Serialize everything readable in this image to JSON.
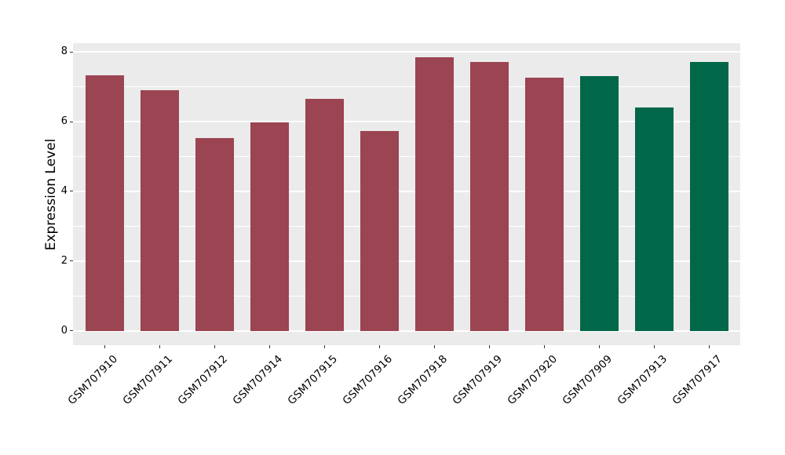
{
  "chart_data": {
    "type": "bar",
    "title": "",
    "xlabel": "",
    "ylabel": "Expression Level",
    "categories": [
      "GSM707910",
      "GSM707911",
      "GSM707912",
      "GSM707914",
      "GSM707915",
      "GSM707916",
      "GSM707918",
      "GSM707919",
      "GSM707920",
      "GSM707909",
      "GSM707913",
      "GSM707917"
    ],
    "values": [
      7.32,
      6.89,
      5.53,
      5.97,
      6.65,
      5.72,
      7.85,
      7.71,
      7.25,
      7.3,
      6.41,
      7.71
    ],
    "bar_colors": [
      "#9B4452",
      "#9B4452",
      "#9B4452",
      "#9B4452",
      "#9B4452",
      "#9B4452",
      "#9B4452",
      "#9B4452",
      "#9B4452",
      "#016749",
      "#016749",
      "#016749"
    ],
    "yticks": [
      0,
      2,
      4,
      6,
      8
    ],
    "minor_gridlines": [
      1,
      3,
      5,
      7
    ],
    "ylim": [
      -0.41,
      8.25
    ],
    "grid": "on",
    "legend": "none",
    "panel_bg": "#EBEBEB",
    "grid_color": "#FFFFFF",
    "group_colors": {
      "maroon": "#9B4452",
      "green": "#016749"
    }
  }
}
